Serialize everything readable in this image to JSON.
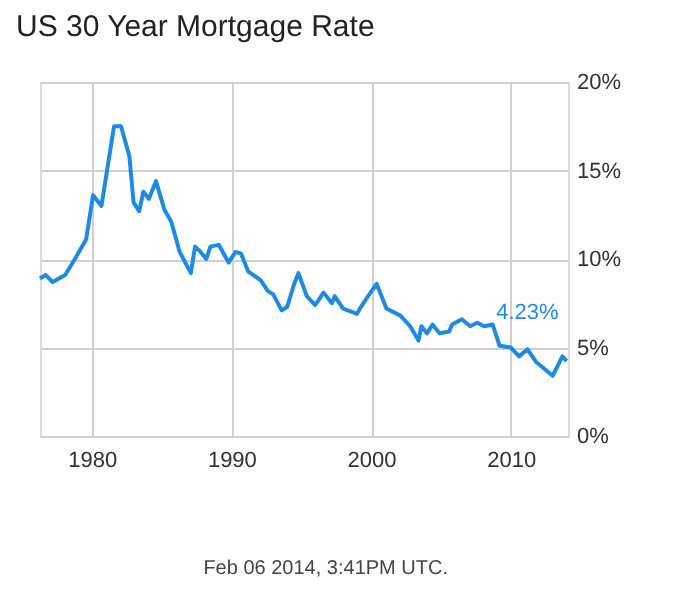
{
  "chart_data": {
    "type": "line",
    "title": "US 30 Year Mortgage Rate",
    "x": [
      1976.3,
      1976.7,
      1977.2,
      1978.1,
      1978.8,
      1979.6,
      1980.1,
      1980.7,
      1981.6,
      1982.1,
      1982.7,
      1983.0,
      1983.4,
      1983.7,
      1984.1,
      1984.6,
      1985.2,
      1985.7,
      1986.3,
      1987.1,
      1987.4,
      1987.8,
      1988.2,
      1988.5,
      1989.1,
      1989.8,
      1990.3,
      1990.7,
      1991.2,
      1992.1,
      1992.6,
      1993.0,
      1993.6,
      1994.0,
      1994.5,
      1994.8,
      1995.4,
      1996.0,
      1996.6,
      1997.2,
      1997.4,
      1998.0,
      1999.0,
      1999.2,
      1999.7,
      2000.4,
      2001.1,
      2002.1,
      2002.8,
      2003.4,
      2003.6,
      2004.0,
      2004.4,
      2004.9,
      2005.6,
      2005.8,
      2006.5,
      2007.1,
      2007.6,
      2008.1,
      2008.7,
      2009.2,
      2010.0,
      2010.6,
      2011.2,
      2011.8,
      2012.4,
      2013.0,
      2013.7,
      2014.0
    ],
    "values": [
      8.9,
      9.1,
      8.7,
      9.1,
      10.0,
      11.1,
      13.6,
      13.0,
      17.5,
      17.5,
      15.8,
      13.2,
      12.7,
      13.8,
      13.4,
      14.4,
      12.8,
      12.1,
      10.4,
      9.2,
      10.7,
      10.4,
      10.0,
      10.7,
      10.8,
      9.8,
      10.4,
      10.3,
      9.3,
      8.8,
      8.2,
      8.0,
      7.1,
      7.3,
      8.6,
      9.2,
      7.9,
      7.4,
      8.1,
      7.5,
      7.9,
      7.2,
      6.9,
      7.2,
      7.8,
      8.6,
      7.2,
      6.8,
      6.2,
      5.4,
      6.2,
      5.8,
      6.3,
      5.8,
      5.9,
      6.3,
      6.6,
      6.2,
      6.4,
      6.2,
      6.3,
      5.1,
      5.0,
      4.5,
      4.9,
      4.2,
      3.8,
      3.4,
      4.5,
      4.23
    ],
    "color": "#1f8ae6",
    "xlim": [
      1976.3,
      2014.1
    ],
    "xticks": [
      1980,
      1990,
      2000,
      2010
    ],
    "ylim": [
      0,
      20
    ],
    "yticks": [
      {
        "value": 0,
        "label": "0%"
      },
      {
        "value": 5,
        "label": "5%"
      },
      {
        "value": 10,
        "label": "10%"
      },
      {
        "value": 15,
        "label": "15%"
      },
      {
        "value": 20,
        "label": "20%"
      }
    ],
    "grid": true,
    "annotations": [
      {
        "text": "4.23%",
        "x": 2014.0,
        "y": 4.23
      },
      "Feb 06 2014, 3:41PM UTC."
    ]
  }
}
